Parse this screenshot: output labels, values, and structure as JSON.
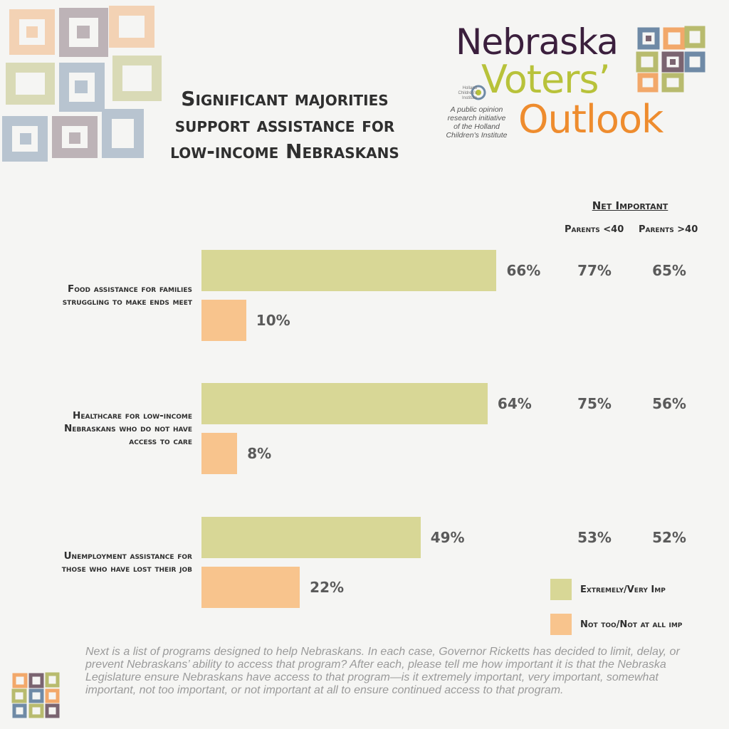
{
  "title_lines": [
    "Significant majorities",
    "support assistance for",
    "low-income Nebraskans"
  ],
  "logo": {
    "line1": "Nebraska",
    "line2": "Voters’",
    "line3": "Outlook",
    "hci": [
      "Holland",
      "Children's",
      "Institute"
    ],
    "tagline": [
      "A public opinion",
      "research initiative",
      "of the Holland",
      "Children's Institute"
    ]
  },
  "headers": {
    "net": "Net Important",
    "col1": "Parents <40",
    "col2": "Parents >40"
  },
  "legend": {
    "important": "Extremely/Very Imp",
    "not_important": "Not too/Not at all imp"
  },
  "footnote": "Next is a list of programs designed to help Nebraskans.  In each case, Governor Ricketts has decided to limit, delay, or prevent Nebraskans’ ability to access that program? After each, please tell me how important it is that the Nebraska Legislature ensure Nebraskans have access to that program—is it extremely important, very important, somewhat important, not too important, or not important at all to ensure continued access to that program.",
  "colors": {
    "important": "#d8d796",
    "not_important": "#f8c48d",
    "text": "#2f2f2f",
    "value": "#5a5a5a"
  },
  "chart_data": {
    "type": "bar",
    "orientation": "horizontal",
    "title": "Significant majorities support assistance for low-income Nebraskans",
    "categories": [
      [
        "Food assistance for families",
        "struggling to make ends meet"
      ],
      [
        "Healthcare for low-income",
        "Nebraskans who do not have",
        "access to care"
      ],
      [
        "Unemployment assistance for",
        "those who have lost their job"
      ]
    ],
    "series": [
      {
        "name": "Extremely/Very Imp",
        "values": [
          66,
          64,
          49
        ],
        "labels": [
          "66%",
          "64%",
          "49%"
        ]
      },
      {
        "name": "Not too/Not at all imp",
        "values": [
          10,
          8,
          22
        ],
        "labels": [
          "10%",
          "8%",
          "22%"
        ]
      }
    ],
    "net_important": {
      "Parents <40": [
        "77%",
        "75%",
        "53%"
      ],
      "Parents >40": [
        "65%",
        "56%",
        "52%"
      ]
    },
    "xlim": [
      0,
      100
    ],
    "grid": false,
    "legend": "bottom-right"
  }
}
